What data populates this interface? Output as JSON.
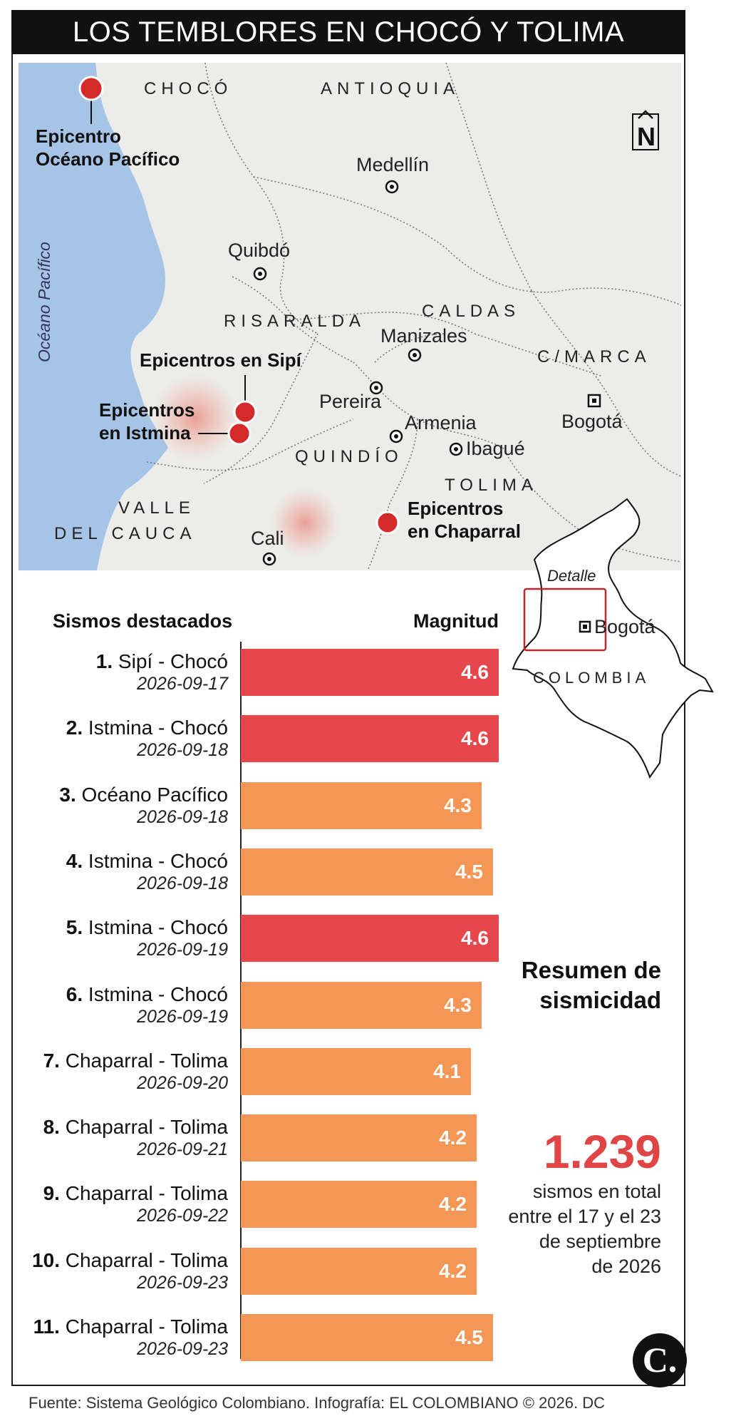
{
  "title": "LOS TEMBLORES EN CHOCÓ Y TOLIMA",
  "map": {
    "regions": [
      "CHOCÓ",
      "ANTIOQUIA",
      "RISARALDA",
      "CALDAS",
      "C/MARCA",
      "QUINDÍO",
      "TOLIMA",
      "VALLE",
      "DEL CAUCA"
    ],
    "ocean_label": "Océano Pacífico",
    "cities": [
      "Medellín",
      "Quibdó",
      "Manizales",
      "Pereira",
      "Armenia",
      "Ibagué",
      "Bogotá",
      "Cali"
    ],
    "epicenters": {
      "pacific": [
        "Epicentro",
        "Océano Pacífico"
      ],
      "sipi": "Epicentros en Sipí",
      "istmina": [
        "Epicentros",
        "en Istmina"
      ],
      "chaparral": [
        "Epicentros",
        "en Chaparral"
      ]
    },
    "north_symbol": "N",
    "colors": {
      "land": "#ececea",
      "sea": "#a6c4e6",
      "epicenter": "#d42a2a"
    }
  },
  "inset": {
    "detail_label": "Detalle",
    "city": "Bogotá",
    "country": "COLOMBIA"
  },
  "chart_data": {
    "type": "bar",
    "orientation": "horizontal",
    "header_left": "Sismos destacados",
    "header_right": "Magnitud",
    "categories": [
      {
        "num": "1.",
        "place": "Sipí - Chocó",
        "date": "2026-09-17"
      },
      {
        "num": "2.",
        "place": "Istmina - Chocó",
        "date": "2026-09-18"
      },
      {
        "num": "3.",
        "place": "Océano Pacífico",
        "date": "2026-09-18"
      },
      {
        "num": "4.",
        "place": "Istmina - Chocó",
        "date": "2026-09-18"
      },
      {
        "num": "5.",
        "place": "Istmina - Chocó",
        "date": "2026-09-19"
      },
      {
        "num": "6.",
        "place": "Istmina - Chocó",
        "date": "2026-09-19"
      },
      {
        "num": "7.",
        "place": "Chaparral - Tolima",
        "date": "2026-09-20"
      },
      {
        "num": "8.",
        "place": "Chaparral - Tolima",
        "date": "2026-09-21"
      },
      {
        "num": "9.",
        "place": "Chaparral - Tolima",
        "date": "2026-09-22"
      },
      {
        "num": "10.",
        "place": "Chaparral - Tolima",
        "date": "2026-09-23"
      },
      {
        "num": "11.",
        "place": "Chaparral - Tolima",
        "date": "2026-09-23"
      }
    ],
    "values": [
      4.6,
      4.6,
      4.3,
      4.5,
      4.6,
      4.3,
      4.1,
      4.2,
      4.2,
      4.2,
      4.5
    ],
    "value_labels": [
      "4.6",
      "4.6",
      "4.3",
      "4.5",
      "4.6",
      "4.3",
      "4.1",
      "4.2",
      "4.2",
      "4.2",
      "4.5"
    ],
    "colors": {
      "high": "#e5474b",
      "normal": "#f39656",
      "high_threshold": 4.6
    }
  },
  "summary": {
    "title_line1": "Resumen de",
    "title_line2": "sismicidad",
    "total": "1.239",
    "text_lines": [
      "sismos en total",
      "entre el 17 y el 23",
      "de septiembre",
      "de 2026"
    ]
  },
  "footer": "Fuente: Sistema Geológico Colombiano. Infografía: EL COLOMBIANO © 2026. DC",
  "logo_letter": "C."
}
